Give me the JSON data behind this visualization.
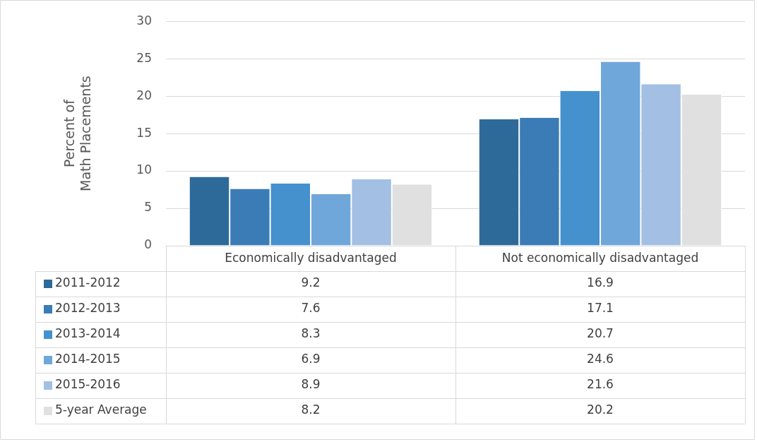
{
  "chart_data": {
    "type": "bar",
    "categories": [
      "Economically disadvantaged",
      "Not economically disadvantaged"
    ],
    "ylabel": "Percent of\nMath Placements",
    "ylim": [
      0,
      30
    ],
    "yticks": [
      0,
      5,
      10,
      15,
      20,
      25,
      30
    ],
    "grid": "y",
    "legend": "bottom",
    "data_labels": true,
    "series": [
      {
        "name": "2011-2012",
        "color": "#2e6a99",
        "values": [
          9.2,
          16.9
        ]
      },
      {
        "name": "2012-2013",
        "color": "#3b7cb6",
        "values": [
          7.6,
          17.1
        ]
      },
      {
        "name": "2013-2014",
        "color": "#4591ce",
        "values": [
          8.3,
          20.7
        ]
      },
      {
        "name": "2014-2015",
        "color": "#70a7da",
        "values": [
          6.9,
          24.6
        ]
      },
      {
        "name": "2015-2016",
        "color": "#a3bfe3",
        "values": [
          8.9,
          21.6
        ]
      },
      {
        "name": "5-year Average",
        "color": "#e0e0e0",
        "values": [
          8.2,
          20.2
        ]
      }
    ]
  }
}
